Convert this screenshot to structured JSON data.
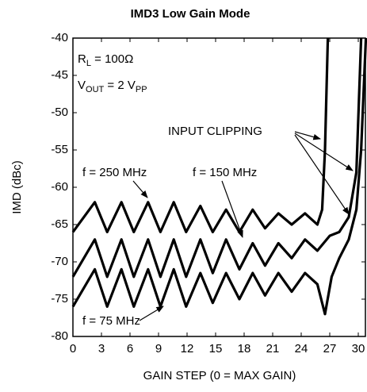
{
  "chart_data": {
    "type": "line",
    "title": "IMD3 Low Gain Mode",
    "x_label": "GAIN STEP (0 = MAX GAIN)",
    "y_label": "IMD (dBc)",
    "xlim": [
      0,
      30.75
    ],
    "xticks": [
      0,
      3,
      6,
      9,
      12,
      15,
      18,
      21,
      24,
      27,
      30
    ],
    "ylim": [
      -80,
      -40
    ],
    "yticks": [
      -80,
      -75,
      -70,
      -65,
      -60,
      -55,
      -50,
      -45,
      -40
    ],
    "grid": false,
    "rl_label": [
      "R",
      "L",
      " = 100Ω"
    ],
    "vout_label": [
      "V",
      "OUT",
      " = 2 V",
      "PP"
    ],
    "clip_label": "INPUT CLIPPING",
    "series": [
      {
        "name": "f = 250 MHz",
        "color": "#000000",
        "x": [
          0,
          2.3,
          3.6,
          5.1,
          6.4,
          7.9,
          9.2,
          10.6,
          11.9,
          13.4,
          14.7,
          16.1,
          17.5,
          18.9,
          20.2,
          21.6,
          23.0,
          24.4,
          25.7,
          26.2,
          26.5,
          26.8
        ],
        "values": [
          -66,
          -62,
          -66,
          -62,
          -66,
          -62,
          -66,
          -62,
          -66,
          -62.5,
          -66,
          -63,
          -66,
          -63,
          -65.5,
          -63.5,
          -65,
          -63.5,
          -65,
          -63,
          -55,
          -40
        ]
      },
      {
        "name": "f = 150 MHz",
        "color": "#000000",
        "x": [
          0,
          2.3,
          3.6,
          5.1,
          6.4,
          7.9,
          9.2,
          10.6,
          11.9,
          13.4,
          14.7,
          16.1,
          17.5,
          18.9,
          20.2,
          21.6,
          23.0,
          24.4,
          25.7,
          27,
          28,
          29,
          29.8,
          30.3
        ],
        "values": [
          -72,
          -67,
          -72,
          -67,
          -72,
          -67,
          -72,
          -67,
          -72,
          -67,
          -71.5,
          -67,
          -71,
          -67.5,
          -70.5,
          -67.5,
          -69.5,
          -67,
          -68.5,
          -66.5,
          -66,
          -64,
          -58,
          -40
        ]
      },
      {
        "name": "f = 75 MHz",
        "color": "#000000",
        "x": [
          0,
          2.3,
          3.6,
          5.1,
          6.4,
          7.9,
          9.2,
          10.6,
          11.9,
          13.4,
          14.7,
          16.1,
          17.5,
          18.9,
          20.2,
          21.6,
          23.0,
          24.4,
          25.7,
          26.5,
          27.2,
          28,
          29,
          29.8,
          30.3,
          30.8
        ],
        "values": [
          -76,
          -71,
          -76,
          -71,
          -76,
          -71,
          -76,
          -71,
          -76,
          -71.5,
          -75.5,
          -71.5,
          -75,
          -71.5,
          -74.5,
          -71.5,
          -74,
          -71.5,
          -73,
          -77,
          -72,
          -69.5,
          -67,
          -63,
          -55,
          -40
        ]
      }
    ]
  }
}
